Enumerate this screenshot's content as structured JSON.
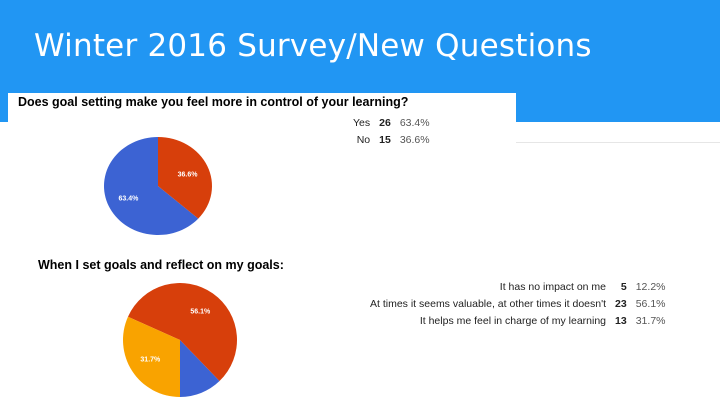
{
  "slide": {
    "title": "Winter 2016 Survey/New Questions",
    "banner_color": "#2196f3"
  },
  "chart_data": [
    {
      "type": "pie",
      "title": "Does goal setting make you feel more in control of your learning?",
      "slices": [
        {
          "label": "Yes",
          "count": 26,
          "percent_label": "63.4%",
          "value": 63.4,
          "color": "#3c63d3"
        },
        {
          "label": "No",
          "count": 15,
          "percent_label": "36.6%",
          "value": 36.6,
          "color": "#d73f0b"
        }
      ]
    },
    {
      "type": "pie",
      "title": "When I set goals and reflect on my goals:",
      "slices": [
        {
          "label": "It has no impact on me",
          "count": 5,
          "percent_label": "12.2%",
          "value": 12.2,
          "color": "#3c63d3"
        },
        {
          "label": "At times it seems valuable, at other times it doesn't",
          "count": 23,
          "percent_label": "56.1%",
          "value": 56.1,
          "color": "#d73f0b"
        },
        {
          "label": "It helps me feel in charge of my learning",
          "count": 13,
          "percent_label": "31.7%",
          "value": 31.7,
          "color": "#f9a300"
        }
      ]
    }
  ]
}
